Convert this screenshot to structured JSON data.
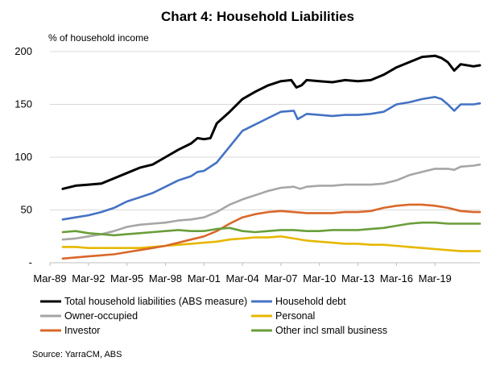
{
  "chart_data": {
    "type": "line",
    "title": "Chart 4: Household Liabilities",
    "ylabel": "% of household income",
    "xlabel": "",
    "ylim": [
      0,
      200
    ],
    "y_ticks": [
      "-",
      "50",
      "100",
      "150",
      "200"
    ],
    "y_tick_values": [
      0,
      50,
      100,
      150,
      200
    ],
    "x_ticks": [
      "Mar-89",
      "Mar-92",
      "Mar-95",
      "Mar-98",
      "Mar-01",
      "Mar-04",
      "Mar-07",
      "Mar-10",
      "Mar-13",
      "Mar-16",
      "Mar-19"
    ],
    "x_tick_years": [
      1989,
      1992,
      1995,
      1998,
      2001,
      2004,
      2007,
      2010,
      2013,
      2016,
      2019
    ],
    "xlim": [
      1989,
      2022.5
    ],
    "grid": "horizontal",
    "legend_position": "bottom",
    "source": "Source: YarraCM, ABS",
    "series": [
      {
        "name": "Total household liabilities (ABS measure)",
        "color": "#000000",
        "points": [
          [
            1990,
            70
          ],
          [
            1991,
            73
          ],
          [
            1992,
            74
          ],
          [
            1993,
            75
          ],
          [
            1994,
            80
          ],
          [
            1995,
            85
          ],
          [
            1996,
            90
          ],
          [
            1997,
            93
          ],
          [
            1998,
            100
          ],
          [
            1999,
            107
          ],
          [
            2000,
            113
          ],
          [
            2000.5,
            118
          ],
          [
            2001,
            117
          ],
          [
            2001.5,
            118
          ],
          [
            2002,
            132
          ],
          [
            2003,
            143
          ],
          [
            2004,
            155
          ],
          [
            2005,
            162
          ],
          [
            2006,
            168
          ],
          [
            2007,
            172
          ],
          [
            2007.8,
            173
          ],
          [
            2008.2,
            166
          ],
          [
            2008.6,
            168
          ],
          [
            2009,
            173
          ],
          [
            2010,
            172
          ],
          [
            2011,
            171
          ],
          [
            2012,
            173
          ],
          [
            2013,
            172
          ],
          [
            2014,
            173
          ],
          [
            2015,
            178
          ],
          [
            2016,
            185
          ],
          [
            2017,
            190
          ],
          [
            2018,
            195
          ],
          [
            2019,
            196
          ],
          [
            2019.5,
            194
          ],
          [
            2020,
            190
          ],
          [
            2020.5,
            182
          ],
          [
            2021,
            188
          ],
          [
            2022,
            186
          ],
          [
            2022.5,
            187
          ]
        ]
      },
      {
        "name": "Household debt",
        "color": "#4472C4",
        "points": [
          [
            1990,
            41
          ],
          [
            1991,
            43
          ],
          [
            1992,
            45
          ],
          [
            1993,
            48
          ],
          [
            1994,
            52
          ],
          [
            1995,
            58
          ],
          [
            1996,
            62
          ],
          [
            1997,
            66
          ],
          [
            1998,
            72
          ],
          [
            1999,
            78
          ],
          [
            2000,
            82
          ],
          [
            2000.5,
            86
          ],
          [
            2001,
            87
          ],
          [
            2002,
            95
          ],
          [
            2003,
            110
          ],
          [
            2004,
            125
          ],
          [
            2005,
            131
          ],
          [
            2006,
            137
          ],
          [
            2007,
            143
          ],
          [
            2008,
            144
          ],
          [
            2008.3,
            136
          ],
          [
            2008.6,
            138
          ],
          [
            2009,
            141
          ],
          [
            2010,
            140
          ],
          [
            2011,
            139
          ],
          [
            2012,
            140
          ],
          [
            2013,
            140
          ],
          [
            2014,
            141
          ],
          [
            2015,
            143
          ],
          [
            2016,
            150
          ],
          [
            2017,
            152
          ],
          [
            2018,
            155
          ],
          [
            2019,
            157
          ],
          [
            2019.5,
            155
          ],
          [
            2020,
            150
          ],
          [
            2020.5,
            144
          ],
          [
            2021,
            150
          ],
          [
            2022,
            150
          ],
          [
            2022.5,
            151
          ]
        ]
      },
      {
        "name": "Owner-occupied",
        "color": "#A6A6A6",
        "points": [
          [
            1990,
            22
          ],
          [
            1991,
            23
          ],
          [
            1992,
            25
          ],
          [
            1993,
            27
          ],
          [
            1994,
            30
          ],
          [
            1995,
            34
          ],
          [
            1996,
            36
          ],
          [
            1997,
            37
          ],
          [
            1998,
            38
          ],
          [
            1999,
            40
          ],
          [
            2000,
            41
          ],
          [
            2001,
            43
          ],
          [
            2002,
            48
          ],
          [
            2003,
            55
          ],
          [
            2004,
            60
          ],
          [
            2005,
            64
          ],
          [
            2006,
            68
          ],
          [
            2007,
            71
          ],
          [
            2008,
            72
          ],
          [
            2008.5,
            70
          ],
          [
            2009,
            72
          ],
          [
            2010,
            73
          ],
          [
            2011,
            73
          ],
          [
            2012,
            74
          ],
          [
            2013,
            74
          ],
          [
            2014,
            74
          ],
          [
            2015,
            75
          ],
          [
            2016,
            78
          ],
          [
            2017,
            83
          ],
          [
            2018,
            86
          ],
          [
            2019,
            89
          ],
          [
            2020,
            89
          ],
          [
            2020.5,
            88
          ],
          [
            2021,
            91
          ],
          [
            2022,
            92
          ],
          [
            2022.5,
            93
          ]
        ]
      },
      {
        "name": "Personal",
        "color": "#E6B800",
        "points": [
          [
            1990,
            15
          ],
          [
            1991,
            15
          ],
          [
            1992,
            14
          ],
          [
            1993,
            14
          ],
          [
            1994,
            14
          ],
          [
            1995,
            14
          ],
          [
            1996,
            14
          ],
          [
            1997,
            15
          ],
          [
            1998,
            16
          ],
          [
            1999,
            17
          ],
          [
            2000,
            18
          ],
          [
            2001,
            19
          ],
          [
            2002,
            20
          ],
          [
            2003,
            22
          ],
          [
            2004,
            23
          ],
          [
            2005,
            24
          ],
          [
            2006,
            24
          ],
          [
            2007,
            25
          ],
          [
            2008,
            23
          ],
          [
            2009,
            21
          ],
          [
            2010,
            20
          ],
          [
            2011,
            19
          ],
          [
            2012,
            18
          ],
          [
            2013,
            18
          ],
          [
            2014,
            17
          ],
          [
            2015,
            17
          ],
          [
            2016,
            16
          ],
          [
            2017,
            15
          ],
          [
            2018,
            14
          ],
          [
            2019,
            13
          ],
          [
            2020,
            12
          ],
          [
            2021,
            11
          ],
          [
            2022,
            11
          ],
          [
            2022.5,
            11
          ]
        ]
      },
      {
        "name": "Investor",
        "color": "#D9682A",
        "points": [
          [
            1990,
            4
          ],
          [
            1991,
            5
          ],
          [
            1992,
            6
          ],
          [
            1993,
            7
          ],
          [
            1994,
            8
          ],
          [
            1995,
            10
          ],
          [
            1996,
            12
          ],
          [
            1997,
            14
          ],
          [
            1998,
            16
          ],
          [
            1999,
            19
          ],
          [
            2000,
            22
          ],
          [
            2001,
            25
          ],
          [
            2002,
            30
          ],
          [
            2003,
            37
          ],
          [
            2004,
            43
          ],
          [
            2005,
            46
          ],
          [
            2006,
            48
          ],
          [
            2007,
            49
          ],
          [
            2008,
            48
          ],
          [
            2009,
            47
          ],
          [
            2010,
            47
          ],
          [
            2011,
            47
          ],
          [
            2012,
            48
          ],
          [
            2013,
            48
          ],
          [
            2014,
            49
          ],
          [
            2015,
            52
          ],
          [
            2016,
            54
          ],
          [
            2017,
            55
          ],
          [
            2018,
            55
          ],
          [
            2019,
            54
          ],
          [
            2020,
            52
          ],
          [
            2021,
            49
          ],
          [
            2022,
            48
          ],
          [
            2022.5,
            48
          ]
        ]
      },
      {
        "name": "Other incl small business",
        "color": "#6A9E3A",
        "points": [
          [
            1990,
            29
          ],
          [
            1991,
            30
          ],
          [
            1992,
            28
          ],
          [
            1993,
            27
          ],
          [
            1994,
            26
          ],
          [
            1995,
            27
          ],
          [
            1996,
            28
          ],
          [
            1997,
            29
          ],
          [
            1998,
            30
          ],
          [
            1999,
            31
          ],
          [
            2000,
            30
          ],
          [
            2001,
            30
          ],
          [
            2002,
            32
          ],
          [
            2003,
            33
          ],
          [
            2004,
            30
          ],
          [
            2005,
            29
          ],
          [
            2006,
            30
          ],
          [
            2007,
            31
          ],
          [
            2008,
            31
          ],
          [
            2009,
            30
          ],
          [
            2010,
            30
          ],
          [
            2011,
            31
          ],
          [
            2012,
            31
          ],
          [
            2013,
            31
          ],
          [
            2014,
            32
          ],
          [
            2015,
            33
          ],
          [
            2016,
            35
          ],
          [
            2017,
            37
          ],
          [
            2018,
            38
          ],
          [
            2019,
            38
          ],
          [
            2020,
            37
          ],
          [
            2021,
            37
          ],
          [
            2022,
            37
          ],
          [
            2022.5,
            37
          ]
        ]
      }
    ],
    "legend_order": [
      0,
      1,
      2,
      3,
      4,
      5
    ]
  }
}
